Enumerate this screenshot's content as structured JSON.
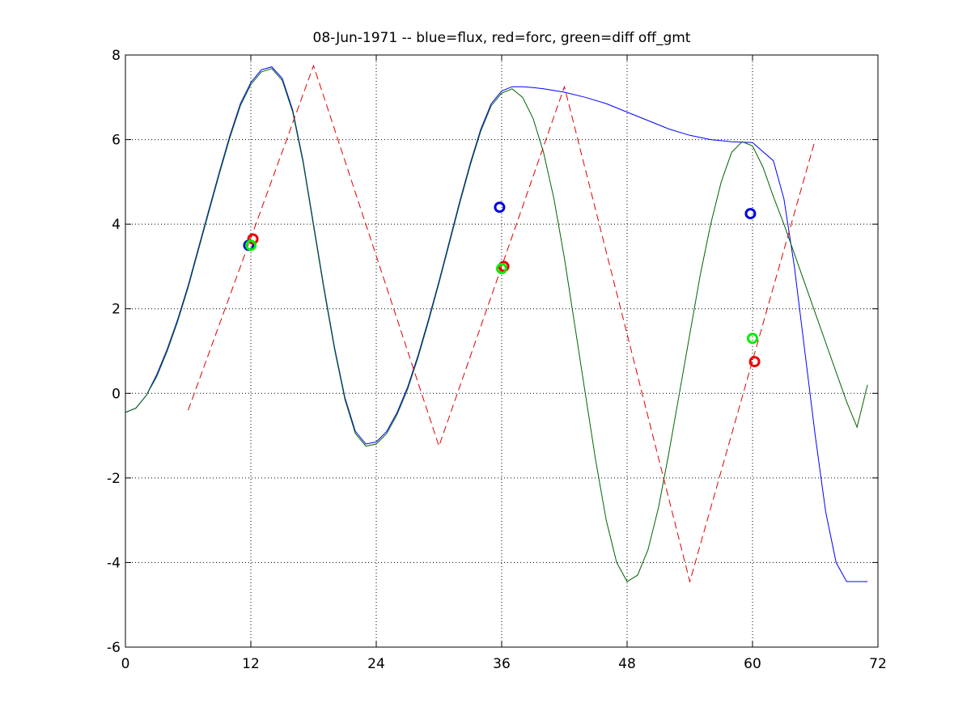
{
  "chart_data": {
    "type": "line",
    "title": "08-Jun-1971 -- blue=flux, red=forc, green=diff off_gmt",
    "xlabel": "",
    "ylabel": "",
    "xlim": [
      0,
      72
    ],
    "ylim": [
      -6,
      8
    ],
    "xticks": [
      0,
      12,
      24,
      36,
      48,
      60,
      72
    ],
    "yticks": [
      -6,
      -4,
      -2,
      0,
      2,
      4,
      6,
      8
    ],
    "grid": true,
    "series": [
      {
        "color": "#0000ff",
        "style": "solid",
        "x": [
          0,
          1,
          2,
          3,
          4,
          5,
          6,
          7,
          8,
          9,
          10,
          11,
          12,
          13,
          14,
          15,
          16,
          17,
          18,
          19,
          20,
          21,
          22,
          23,
          24,
          25,
          26,
          27,
          28,
          29,
          30,
          31,
          32,
          33,
          34,
          35,
          36,
          37,
          38,
          39,
          40,
          42,
          44,
          46,
          48,
          50,
          52,
          54,
          56,
          58,
          60,
          62,
          63,
          64,
          65,
          66,
          67,
          68,
          69,
          70,
          71
        ],
        "y": [
          -0.45,
          -0.35,
          -0.05,
          0.45,
          1.05,
          1.75,
          2.55,
          3.45,
          4.35,
          5.25,
          6.1,
          6.85,
          7.35,
          7.65,
          7.72,
          7.45,
          6.7,
          5.5,
          4.0,
          2.5,
          1.1,
          -0.1,
          -0.9,
          -1.2,
          -1.15,
          -0.9,
          -0.45,
          0.15,
          0.9,
          1.75,
          2.65,
          3.6,
          4.55,
          5.45,
          6.25,
          6.85,
          7.15,
          7.25,
          7.25,
          7.23,
          7.2,
          7.12,
          7.0,
          6.85,
          6.65,
          6.45,
          6.25,
          6.1,
          6.0,
          5.95,
          5.93,
          5.5,
          4.6,
          3.0,
          1.0,
          -1.0,
          -2.8,
          -4.0,
          -4.45,
          -4.45,
          -4.45
        ]
      },
      {
        "color": "#006400",
        "style": "solid",
        "x": [
          0,
          1,
          2,
          3,
          4,
          5,
          6,
          7,
          8,
          9,
          10,
          11,
          12,
          13,
          14,
          15,
          16,
          17,
          18,
          19,
          20,
          21,
          22,
          23,
          24,
          25,
          26,
          27,
          28,
          29,
          30,
          31,
          32,
          33,
          34,
          35,
          36,
          37,
          38,
          39,
          40,
          41,
          42,
          43,
          44,
          45,
          46,
          47,
          48,
          49,
          50,
          51,
          52,
          53,
          54,
          55,
          56,
          57,
          58,
          59,
          60,
          61,
          62,
          63,
          64,
          65,
          66,
          67,
          68,
          69,
          70,
          71
        ],
        "y": [
          -0.45,
          -0.35,
          -0.05,
          0.4,
          1.0,
          1.7,
          2.5,
          3.4,
          4.3,
          5.2,
          6.05,
          6.8,
          7.3,
          7.6,
          7.68,
          7.4,
          6.65,
          5.45,
          3.95,
          2.45,
          1.05,
          -0.15,
          -0.95,
          -1.25,
          -1.2,
          -0.95,
          -0.5,
          0.1,
          0.85,
          1.7,
          2.6,
          3.55,
          4.5,
          5.4,
          6.2,
          6.8,
          7.1,
          7.2,
          7.0,
          6.5,
          5.7,
          4.6,
          3.2,
          1.6,
          0.0,
          -1.6,
          -3.0,
          -4.0,
          -4.45,
          -4.3,
          -3.7,
          -2.7,
          -1.4,
          0.0,
          1.4,
          2.8,
          4.0,
          5.0,
          5.7,
          5.95,
          5.85,
          5.35,
          4.65,
          4.0,
          3.3,
          2.6,
          1.9,
          1.2,
          0.5,
          -0.2,
          -0.8,
          0.2
        ]
      },
      {
        "color": "#dd0000",
        "style": "dashed",
        "x": [
          6,
          18,
          30,
          42,
          54,
          66
        ],
        "y": [
          -0.4,
          7.75,
          -1.25,
          7.25,
          -4.45,
          6.0
        ]
      }
    ],
    "markers": [
      {
        "color": "#0000dd",
        "x": 11.8,
        "y": 3.5
      },
      {
        "color": "#ee0000",
        "x": 12.2,
        "y": 3.65
      },
      {
        "color": "#00ee00",
        "x": 12.0,
        "y": 3.5
      },
      {
        "color": "#0000dd",
        "x": 35.8,
        "y": 4.4
      },
      {
        "color": "#ee0000",
        "x": 36.2,
        "y": 3.0
      },
      {
        "color": "#00ee00",
        "x": 36.0,
        "y": 2.95
      },
      {
        "color": "#0000dd",
        "x": 59.8,
        "y": 4.25
      },
      {
        "color": "#ee0000",
        "x": 60.2,
        "y": 0.75
      },
      {
        "color": "#00ee00",
        "x": 60.0,
        "y": 1.3
      }
    ]
  }
}
